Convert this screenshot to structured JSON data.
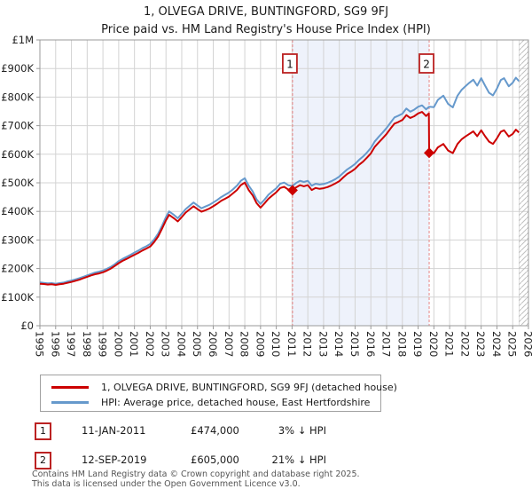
{
  "title": "1, OLVEGA DRIVE, BUNTINGFORD, SG9 9FJ",
  "subtitle": "Price paid vs. HM Land Registry's House Price Index (HPI)",
  "colors": {
    "property_line": "#cc0000",
    "hpi_line": "#6699cc",
    "event_dashed_line": "#e88585",
    "between_sales_shade": "#eef2fb",
    "gridline": "#d3d3d3",
    "plot_border": "#999999",
    "hatch": "#bfbfbf",
    "number_box_border": "#bb2222"
  },
  "legend": {
    "items": [
      {
        "label": "1, OLVEGA DRIVE, BUNTINGFORD, SG9 9FJ (detached house)",
        "series": "property"
      },
      {
        "label": "HPI: Average price, detached house, East Hertfordshire",
        "series": "hpi"
      }
    ]
  },
  "events": [
    {
      "n": "1",
      "date": "11-JAN-2011",
      "price": "£474,000",
      "delta": "3% ↓ HPI",
      "year": 2011.03,
      "value": 474000
    },
    {
      "n": "2",
      "date": "12-SEP-2019",
      "price": "£605,000",
      "delta": "21% ↓ HPI",
      "year": 2019.7,
      "value": 605000
    }
  ],
  "footer": {
    "line1": "Contains HM Land Registry data © Crown copyright and database right 2025.",
    "line2": "This data is licensed under the Open Government Licence v3.0."
  },
  "chart_data": {
    "type": "line",
    "title": "1, OLVEGA DRIVE, BUNTINGFORD, SG9 9FJ",
    "subtitle": "Price paid vs. HM Land Registry's House Price Index (HPI)",
    "xlabel": "",
    "ylabel": "",
    "xlim": [
      1995,
      2026
    ],
    "ylim": [
      0,
      1000000
    ],
    "grid": true,
    "legend_position": "bottom",
    "xticks": [
      1995,
      1996,
      1997,
      1998,
      1999,
      2000,
      2001,
      2002,
      2003,
      2004,
      2005,
      2006,
      2007,
      2008,
      2009,
      2010,
      2011,
      2012,
      2013,
      2014,
      2015,
      2016,
      2017,
      2018,
      2019,
      2020,
      2021,
      2022,
      2023,
      2024,
      2025,
      2026
    ],
    "yticks": [
      0,
      100000,
      200000,
      300000,
      400000,
      500000,
      600000,
      700000,
      800000,
      900000,
      1000000
    ],
    "ytick_labels": [
      "£0",
      "£100K",
      "£200K",
      "£300K",
      "£400K",
      "£500K",
      "£600K",
      "£700K",
      "£800K",
      "£900K",
      "£1M"
    ],
    "shade_between_events": true,
    "future_hatch_start": 2025.4,
    "series": [
      {
        "name": "1, OLVEGA DRIVE, BUNTINGFORD, SG9 9FJ (detached house)",
        "color": "#cc0000",
        "points": [
          [
            1995.0,
            147000
          ],
          [
            1995.25,
            146000
          ],
          [
            1995.5,
            144000
          ],
          [
            1995.75,
            145000
          ],
          [
            1996.0,
            143000
          ],
          [
            1996.25,
            145000
          ],
          [
            1996.5,
            147000
          ],
          [
            1996.75,
            150000
          ],
          [
            1997.0,
            153000
          ],
          [
            1997.25,
            157000
          ],
          [
            1997.5,
            161000
          ],
          [
            1997.75,
            166000
          ],
          [
            1998.0,
            171000
          ],
          [
            1998.25,
            176000
          ],
          [
            1998.5,
            180000
          ],
          [
            1998.75,
            183000
          ],
          [
            1999.0,
            187000
          ],
          [
            1999.25,
            193000
          ],
          [
            1999.5,
            200000
          ],
          [
            1999.75,
            209000
          ],
          [
            2000.0,
            219000
          ],
          [
            2000.25,
            227000
          ],
          [
            2000.5,
            234000
          ],
          [
            2000.75,
            241000
          ],
          [
            2001.0,
            248000
          ],
          [
            2001.25,
            255000
          ],
          [
            2001.5,
            263000
          ],
          [
            2001.75,
            270000
          ],
          [
            2002.0,
            277000
          ],
          [
            2002.25,
            293000
          ],
          [
            2002.5,
            312000
          ],
          [
            2002.75,
            340000
          ],
          [
            2003.0,
            369000
          ],
          [
            2003.2,
            388000
          ],
          [
            2003.5,
            376000
          ],
          [
            2003.75,
            365000
          ],
          [
            2004.0,
            380000
          ],
          [
            2004.25,
            396000
          ],
          [
            2004.5,
            407000
          ],
          [
            2004.75,
            418000
          ],
          [
            2005.0,
            408000
          ],
          [
            2005.25,
            399000
          ],
          [
            2005.5,
            404000
          ],
          [
            2005.75,
            410000
          ],
          [
            2006.0,
            418000
          ],
          [
            2006.25,
            427000
          ],
          [
            2006.5,
            437000
          ],
          [
            2006.75,
            444000
          ],
          [
            2007.0,
            452000
          ],
          [
            2007.25,
            463000
          ],
          [
            2007.5,
            475000
          ],
          [
            2007.75,
            492000
          ],
          [
            2008.0,
            501000
          ],
          [
            2008.25,
            475000
          ],
          [
            2008.5,
            456000
          ],
          [
            2008.75,
            429000
          ],
          [
            2009.0,
            413000
          ],
          [
            2009.25,
            428000
          ],
          [
            2009.5,
            444000
          ],
          [
            2009.75,
            456000
          ],
          [
            2010.0,
            467000
          ],
          [
            2010.25,
            482000
          ],
          [
            2010.5,
            486000
          ],
          [
            2010.75,
            477000
          ],
          [
            2011.03,
            474000
          ],
          [
            2011.25,
            484000
          ],
          [
            2011.5,
            492000
          ],
          [
            2011.75,
            488000
          ],
          [
            2012.0,
            492000
          ],
          [
            2012.25,
            475000
          ],
          [
            2012.5,
            482000
          ],
          [
            2012.75,
            479000
          ],
          [
            2013.0,
            481000
          ],
          [
            2013.25,
            485000
          ],
          [
            2013.5,
            491000
          ],
          [
            2013.75,
            498000
          ],
          [
            2014.0,
            506000
          ],
          [
            2014.25,
            519000
          ],
          [
            2014.5,
            531000
          ],
          [
            2014.75,
            539000
          ],
          [
            2015.0,
            549000
          ],
          [
            2015.25,
            563000
          ],
          [
            2015.5,
            574000
          ],
          [
            2015.75,
            588000
          ],
          [
            2016.0,
            603000
          ],
          [
            2016.25,
            626000
          ],
          [
            2016.5,
            641000
          ],
          [
            2016.75,
            656000
          ],
          [
            2017.0,
            671000
          ],
          [
            2017.25,
            690000
          ],
          [
            2017.5,
            707000
          ],
          [
            2017.75,
            713000
          ],
          [
            2018.0,
            720000
          ],
          [
            2018.25,
            737000
          ],
          [
            2018.5,
            727000
          ],
          [
            2018.75,
            733000
          ],
          [
            2019.0,
            743000
          ],
          [
            2019.25,
            748000
          ],
          [
            2019.5,
            734000
          ],
          [
            2019.68,
            743000
          ],
          [
            2019.7,
            605000
          ],
          [
            2020.0,
            604000
          ],
          [
            2020.25,
            624000
          ],
          [
            2020.6,
            636000
          ],
          [
            2020.9,
            613000
          ],
          [
            2021.2,
            604000
          ],
          [
            2021.5,
            636000
          ],
          [
            2021.75,
            652000
          ],
          [
            2022.0,
            662000
          ],
          [
            2022.25,
            671000
          ],
          [
            2022.5,
            680000
          ],
          [
            2022.75,
            663000
          ],
          [
            2023.0,
            684000
          ],
          [
            2023.25,
            663000
          ],
          [
            2023.5,
            644000
          ],
          [
            2023.75,
            636000
          ],
          [
            2024.0,
            656000
          ],
          [
            2024.25,
            679000
          ],
          [
            2024.45,
            684000
          ],
          [
            2024.75,
            662000
          ],
          [
            2025.0,
            671000
          ],
          [
            2025.2,
            686000
          ],
          [
            2025.4,
            676000
          ]
        ]
      },
      {
        "name": "HPI: Average price, detached house, East Hertfordshire",
        "color": "#6699cc",
        "points": [
          [
            1995.0,
            152000
          ],
          [
            1995.25,
            150000
          ],
          [
            1995.5,
            148000
          ],
          [
            1995.75,
            149000
          ],
          [
            1996.0,
            147000
          ],
          [
            1996.25,
            149000
          ],
          [
            1996.5,
            151000
          ],
          [
            1996.75,
            155000
          ],
          [
            1997.0,
            158000
          ],
          [
            1997.25,
            162000
          ],
          [
            1997.5,
            166000
          ],
          [
            1997.75,
            171000
          ],
          [
            1998.0,
            176000
          ],
          [
            1998.25,
            181000
          ],
          [
            1998.5,
            186000
          ],
          [
            1998.75,
            189000
          ],
          [
            1999.0,
            193000
          ],
          [
            1999.25,
            199000
          ],
          [
            1999.5,
            206000
          ],
          [
            1999.75,
            215000
          ],
          [
            2000.0,
            226000
          ],
          [
            2000.25,
            234000
          ],
          [
            2000.5,
            241000
          ],
          [
            2000.75,
            248000
          ],
          [
            2001.0,
            256000
          ],
          [
            2001.25,
            263000
          ],
          [
            2001.5,
            271000
          ],
          [
            2001.75,
            278000
          ],
          [
            2002.0,
            286000
          ],
          [
            2002.25,
            302000
          ],
          [
            2002.5,
            322000
          ],
          [
            2002.75,
            350000
          ],
          [
            2003.0,
            380000
          ],
          [
            2003.2,
            400000
          ],
          [
            2003.5,
            388000
          ],
          [
            2003.75,
            376000
          ],
          [
            2004.0,
            392000
          ],
          [
            2004.25,
            408000
          ],
          [
            2004.5,
            420000
          ],
          [
            2004.75,
            431000
          ],
          [
            2005.0,
            421000
          ],
          [
            2005.25,
            411000
          ],
          [
            2005.5,
            417000
          ],
          [
            2005.75,
            423000
          ],
          [
            2006.0,
            431000
          ],
          [
            2006.25,
            440000
          ],
          [
            2006.5,
            450000
          ],
          [
            2006.75,
            458000
          ],
          [
            2007.0,
            466000
          ],
          [
            2007.25,
            477000
          ],
          [
            2007.5,
            490000
          ],
          [
            2007.75,
            507000
          ],
          [
            2008.0,
            516000
          ],
          [
            2008.25,
            490000
          ],
          [
            2008.5,
            470000
          ],
          [
            2008.75,
            442000
          ],
          [
            2009.0,
            426000
          ],
          [
            2009.25,
            441000
          ],
          [
            2009.5,
            458000
          ],
          [
            2009.75,
            470000
          ],
          [
            2010.0,
            481000
          ],
          [
            2010.25,
            497000
          ],
          [
            2010.5,
            501000
          ],
          [
            2010.75,
            492000
          ],
          [
            2011.03,
            489000
          ],
          [
            2011.25,
            499000
          ],
          [
            2011.5,
            507000
          ],
          [
            2011.75,
            503000
          ],
          [
            2012.0,
            507000
          ],
          [
            2012.25,
            490000
          ],
          [
            2012.5,
            497000
          ],
          [
            2012.75,
            494000
          ],
          [
            2013.0,
            496000
          ],
          [
            2013.25,
            500000
          ],
          [
            2013.5,
            506000
          ],
          [
            2013.75,
            513000
          ],
          [
            2014.0,
            522000
          ],
          [
            2014.25,
            535000
          ],
          [
            2014.5,
            547000
          ],
          [
            2014.75,
            556000
          ],
          [
            2015.0,
            566000
          ],
          [
            2015.25,
            580000
          ],
          [
            2015.5,
            592000
          ],
          [
            2015.75,
            606000
          ],
          [
            2016.0,
            622000
          ],
          [
            2016.25,
            645000
          ],
          [
            2016.5,
            661000
          ],
          [
            2016.75,
            676000
          ],
          [
            2017.0,
            692000
          ],
          [
            2017.25,
            711000
          ],
          [
            2017.5,
            729000
          ],
          [
            2017.75,
            735000
          ],
          [
            2018.0,
            742000
          ],
          [
            2018.25,
            760000
          ],
          [
            2018.5,
            749000
          ],
          [
            2018.75,
            756000
          ],
          [
            2019.0,
            766000
          ],
          [
            2019.25,
            771000
          ],
          [
            2019.5,
            757000
          ],
          [
            2019.7,
            766000
          ],
          [
            2020.0,
            765000
          ],
          [
            2020.25,
            790000
          ],
          [
            2020.6,
            805000
          ],
          [
            2020.9,
            776000
          ],
          [
            2021.2,
            764000
          ],
          [
            2021.5,
            805000
          ],
          [
            2021.75,
            825000
          ],
          [
            2022.0,
            838000
          ],
          [
            2022.25,
            850000
          ],
          [
            2022.5,
            861000
          ],
          [
            2022.75,
            840000
          ],
          [
            2023.0,
            866000
          ],
          [
            2023.25,
            840000
          ],
          [
            2023.5,
            815000
          ],
          [
            2023.75,
            806000
          ],
          [
            2024.0,
            830000
          ],
          [
            2024.25,
            860000
          ],
          [
            2024.45,
            866000
          ],
          [
            2024.75,
            838000
          ],
          [
            2025.0,
            850000
          ],
          [
            2025.2,
            868000
          ],
          [
            2025.4,
            856000
          ]
        ]
      }
    ]
  }
}
